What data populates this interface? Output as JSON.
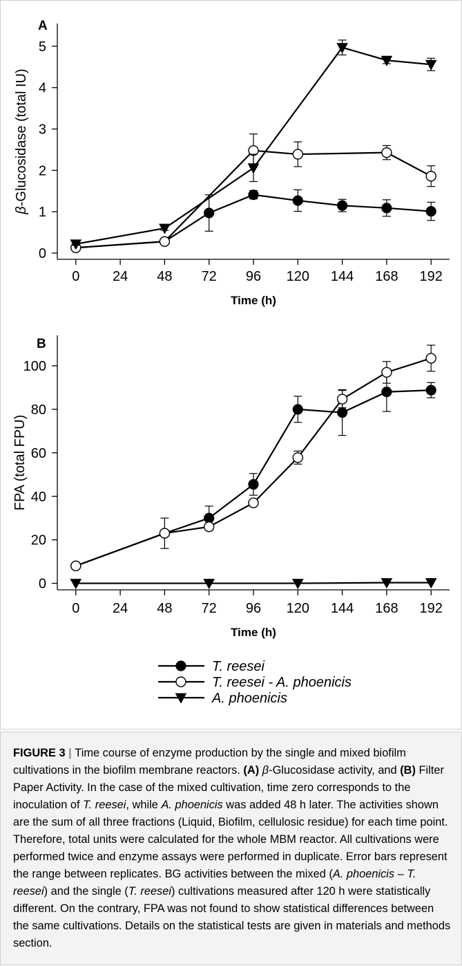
{
  "chart_data": [
    {
      "panel": "A",
      "type": "line",
      "xlabel": "Time (h)",
      "ylabel": "β-Glucosidase (total IU)",
      "xlim": [
        -10,
        202
      ],
      "ylim": [
        -0.15,
        5.55
      ],
      "xticks": [
        0,
        24,
        48,
        72,
        96,
        120,
        144,
        168,
        192
      ],
      "yticks": [
        0,
        1,
        2,
        3,
        4,
        5
      ],
      "series": [
        {
          "name": "T. reesei",
          "marker": "filled-circle",
          "x": [
            0,
            48,
            72,
            96,
            120,
            144,
            168,
            192
          ],
          "y": [
            0.13,
            0.28,
            0.97,
            1.41,
            1.27,
            1.15,
            1.09,
            1.01
          ],
          "err": [
            0.05,
            0.05,
            0.44,
            0.1,
            0.26,
            0.15,
            0.2,
            0.22
          ]
        },
        {
          "name": "T. reesei - A. phoenicis",
          "marker": "open-circle",
          "x": [
            0,
            48,
            96,
            120,
            168,
            192
          ],
          "y": [
            0.13,
            0.28,
            2.48,
            2.39,
            2.43,
            1.86
          ],
          "err": [
            0.05,
            0.05,
            0.4,
            0.3,
            0.17,
            0.25
          ]
        },
        {
          "name": "A. phoenicis",
          "marker": "filled-triangle-down",
          "x": [
            0,
            48,
            96,
            144,
            168,
            192
          ],
          "y": [
            0.22,
            0.6,
            2.06,
            4.97,
            4.66,
            4.56
          ],
          "err": [
            0.03,
            0.05,
            0.33,
            0.18,
            0.08,
            0.15
          ]
        }
      ]
    },
    {
      "panel": "B",
      "type": "line",
      "xlabel": "Time (h)",
      "ylabel": "FPA (total FPU)",
      "xlim": [
        -10,
        202
      ],
      "ylim": [
        -3,
        114
      ],
      "xticks": [
        0,
        24,
        48,
        72,
        96,
        120,
        144,
        168,
        192
      ],
      "yticks": [
        0,
        20,
        40,
        60,
        80,
        100
      ],
      "series": [
        {
          "name": "T. reesei",
          "marker": "filled-circle",
          "x": [
            0,
            48,
            72,
            96,
            120,
            144,
            168,
            192
          ],
          "y": [
            8,
            23,
            30,
            45.5,
            80,
            78.5,
            88,
            88.8
          ],
          "err": [
            1,
            7,
            5.5,
            5,
            6,
            10.5,
            9,
            3.5
          ]
        },
        {
          "name": "T. reesei - A. phoenicis",
          "marker": "open-circle",
          "x": [
            0,
            48,
            72,
            96,
            120,
            144,
            168,
            192
          ],
          "y": [
            8,
            23,
            26,
            37,
            57.8,
            84.7,
            97,
            103.5
          ],
          "err": [
            1,
            1,
            1,
            1,
            3,
            4,
            5,
            6
          ]
        },
        {
          "name": "A. phoenicis",
          "marker": "filled-triangle-down",
          "x": [
            0,
            72,
            120,
            168,
            192
          ],
          "y": [
            0,
            0,
            0,
            0.3,
            0.3
          ],
          "err": [
            0,
            0,
            0,
            0,
            0
          ]
        }
      ]
    }
  ],
  "legend": {
    "position": "below-charts",
    "entries": [
      "T. reesei",
      "T. reesei - A. phoenicis",
      "A. phoenicis"
    ]
  },
  "caption": {
    "label": "FIGURE 3",
    "separator": " | ",
    "parts": [
      {
        "t": "Time course of enzyme production by the single and mixed biofilm cultivations in the biofilm membrane reactors. "
      },
      {
        "t": "(A)",
        "b": true
      },
      {
        "t": " "
      },
      {
        "t": "β",
        "i": true
      },
      {
        "t": "-Glucosidase activity, and "
      },
      {
        "t": "(B)",
        "b": true
      },
      {
        "t": " Filter Paper Activity. In the case of the mixed cultivation, time zero corresponds to the inoculation of "
      },
      {
        "t": "T. reesei",
        "i": true
      },
      {
        "t": ", while "
      },
      {
        "t": "A. phoenicis",
        "i": true
      },
      {
        "t": " was added 48 h later. The activities shown are the sum of all three fractions (Liquid, Biofilm, cellulosic residue) for each time point. Therefore, total units were calculated for the whole MBM reactor. All cultivations were performed twice and enzyme assays were performed in duplicate. Error bars represent the range between replicates. BG activities between the mixed ("
      },
      {
        "t": "A. phoenicis –",
        "i": true
      },
      {
        "t": " "
      },
      {
        "t": "T. reesei",
        "i": true
      },
      {
        "t": ") and the single ("
      },
      {
        "t": "T. reesei",
        "i": true
      },
      {
        "t": ") cultivations measured after 120 h were statistically different. On the contrary, FPA was not found to show statistical differences between the same cultivations. Details on the statistical tests are given in materials and methods section."
      }
    ]
  }
}
